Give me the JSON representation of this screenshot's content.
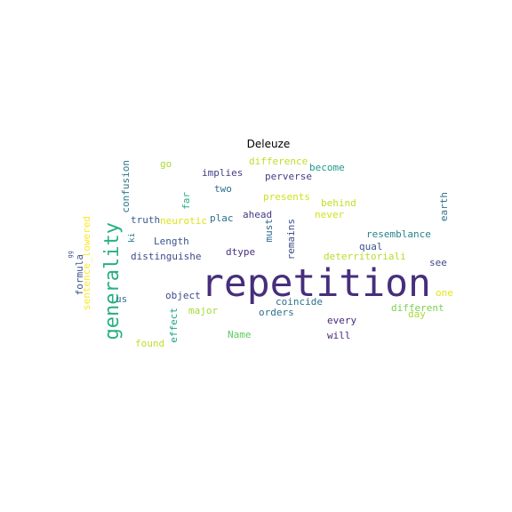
{
  "title": "Deleuze",
  "words": [
    {
      "text": "repetition",
      "color": "#472e7c",
      "size": 43,
      "vertical": false
    },
    {
      "text": "generality",
      "color": "#29af7f",
      "size": 22,
      "vertical": true
    },
    {
      "text": "difference",
      "color": "#bddf26",
      "size": 11,
      "vertical": false
    },
    {
      "text": "go",
      "color": "#a8db34",
      "size": 11,
      "vertical": false
    },
    {
      "text": "implies",
      "color": "#433e85",
      "size": 11,
      "vertical": false
    },
    {
      "text": "become",
      "color": "#1f9a8a",
      "size": 11,
      "vertical": false
    },
    {
      "text": "perverse",
      "color": "#433e85",
      "size": 11,
      "vertical": false
    },
    {
      "text": "confusion",
      "color": "#2a788e",
      "size": 11,
      "vertical": true
    },
    {
      "text": "two",
      "color": "#2c728e",
      "size": 11,
      "vertical": false
    },
    {
      "text": "presents",
      "color": "#d0e11c",
      "size": 11,
      "vertical": false
    },
    {
      "text": "behind",
      "color": "#c2df23",
      "size": 11,
      "vertical": false
    },
    {
      "text": "far",
      "color": "#28ae80",
      "size": 11,
      "vertical": true
    },
    {
      "text": "earth",
      "color": "#2c728e",
      "size": 11,
      "vertical": true
    },
    {
      "text": "truth",
      "color": "#38588c",
      "size": 11,
      "vertical": false
    },
    {
      "text": "neurotic",
      "color": "#dde318",
      "size": 11,
      "vertical": false
    },
    {
      "text": "plac",
      "color": "#2d708e",
      "size": 11,
      "vertical": false
    },
    {
      "text": "ahead",
      "color": "#443a83",
      "size": 11,
      "vertical": false
    },
    {
      "text": "never",
      "color": "#d2e21b",
      "size": 11,
      "vertical": false
    },
    {
      "text": "sentence_lowered",
      "color": "#fde725",
      "size": 11,
      "vertical": true
    },
    {
      "text": "ki",
      "color": "#2a788e",
      "size": 9,
      "vertical": true
    },
    {
      "text": "Length",
      "color": "#3b528b",
      "size": 11,
      "vertical": false
    },
    {
      "text": "resemblance",
      "color": "#26828e",
      "size": 11,
      "vertical": false
    },
    {
      "text": "must",
      "color": "#31688e",
      "size": 11,
      "vertical": true
    },
    {
      "text": "remains",
      "color": "#3e4a89",
      "size": 11,
      "vertical": true
    },
    {
      "text": "qual",
      "color": "#3b528b",
      "size": 11,
      "vertical": false
    },
    {
      "text": "dtype",
      "color": "#46327e",
      "size": 11,
      "vertical": false
    },
    {
      "text": "gg",
      "color": "#3b528b",
      "size": 7,
      "vertical": true
    },
    {
      "text": "formula",
      "color": "#3b528b",
      "size": 11,
      "vertical": true
    },
    {
      "text": "distinguishe",
      "color": "#3e4a89",
      "size": 11,
      "vertical": false
    },
    {
      "text": "deterritoriali",
      "color": "#b5de2b",
      "size": 11,
      "vertical": false
    },
    {
      "text": "see",
      "color": "#3e4a89",
      "size": 11,
      "vertical": false
    },
    {
      "text": "object",
      "color": "#3e4a89",
      "size": 11,
      "vertical": false
    },
    {
      "text": "one",
      "color": "#e5e419",
      "size": 11,
      "vertical": false
    },
    {
      "text": "us",
      "color": "#2c728e",
      "size": 11,
      "vertical": false
    },
    {
      "text": "coincide",
      "color": "#2c728e",
      "size": 11,
      "vertical": false
    },
    {
      "text": "different",
      "color": "#7ad151",
      "size": 11,
      "vertical": false
    },
    {
      "text": "major",
      "color": "#a5db36",
      "size": 11,
      "vertical": false
    },
    {
      "text": "orders",
      "color": "#2c728e",
      "size": 11,
      "vertical": false
    },
    {
      "text": "day",
      "color": "#a8db34",
      "size": 11,
      "vertical": false
    },
    {
      "text": "effect",
      "color": "#20a386",
      "size": 11,
      "vertical": true
    },
    {
      "text": "every",
      "color": "#482878",
      "size": 11,
      "vertical": false
    },
    {
      "text": "Name",
      "color": "#5ec962",
      "size": 11,
      "vertical": false
    },
    {
      "text": "will",
      "color": "#482878",
      "size": 11,
      "vertical": false
    },
    {
      "text": "found",
      "color": "#bddf26",
      "size": 11,
      "vertical": false
    }
  ]
}
